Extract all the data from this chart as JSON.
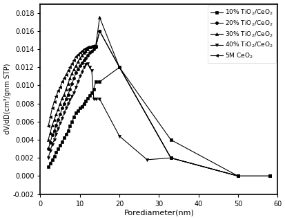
{
  "title": "",
  "xlabel": "Porediameter(nm)",
  "ylabel": "dV/dD(cm³/gnm STP)",
  "xlim": [
    0,
    60
  ],
  "ylim": [
    -0.002,
    0.019
  ],
  "yticks": [
    -0.002,
    0.0,
    0.002,
    0.004,
    0.006,
    0.008,
    0.01,
    0.012,
    0.014,
    0.016,
    0.018
  ],
  "xticks": [
    0,
    10,
    20,
    30,
    40,
    50,
    60
  ],
  "series": [
    {
      "label": "10% TiO$_2$/CeO$_2$",
      "marker": "s",
      "x": [
        2,
        2.5,
        3,
        3.5,
        4,
        4.5,
        5,
        5.5,
        6,
        6.5,
        7,
        7.5,
        8,
        8.5,
        9,
        9.5,
        10,
        10.5,
        11,
        11.5,
        12,
        12.5,
        13,
        13.5,
        14,
        15,
        20,
        33,
        50,
        58
      ],
      "y": [
        0.001,
        0.0014,
        0.0018,
        0.0022,
        0.0026,
        0.003,
        0.0034,
        0.0038,
        0.0042,
        0.0046,
        0.005,
        0.0055,
        0.006,
        0.0065,
        0.007,
        0.0072,
        0.0075,
        0.0077,
        0.008,
        0.0083,
        0.0086,
        0.0089,
        0.0092,
        0.0096,
        0.0104,
        0.0104,
        0.012,
        0.004,
        0.0,
        0.0
      ]
    },
    {
      "label": "20% TiO$_2$/CeO$_2$",
      "marker": "o",
      "x": [
        2,
        2.5,
        3,
        3.5,
        4,
        4.5,
        5,
        5.5,
        6,
        6.5,
        7,
        7.5,
        8,
        8.5,
        9,
        9.5,
        10,
        10.5,
        11,
        11.5,
        12,
        12.5,
        13,
        13.5,
        14,
        15,
        20,
        33,
        50,
        58
      ],
      "y": [
        0.003,
        0.0037,
        0.0045,
        0.005,
        0.0056,
        0.0062,
        0.0068,
        0.0075,
        0.008,
        0.0085,
        0.009,
        0.0096,
        0.0102,
        0.0108,
        0.0114,
        0.0118,
        0.0122,
        0.0125,
        0.0128,
        0.013,
        0.0133,
        0.0136,
        0.0138,
        0.014,
        0.0142,
        0.016,
        0.012,
        0.002,
        0.0,
        0.0
      ]
    },
    {
      "label": "30% TiO$_2$/CeO$_2$",
      "marker": "^",
      "x": [
        2,
        2.5,
        3,
        3.5,
        4,
        4.5,
        5,
        5.5,
        6,
        6.5,
        7,
        7.5,
        8,
        8.5,
        9,
        9.5,
        10,
        10.5,
        11,
        11.5,
        12,
        12.5,
        13,
        13.5,
        14,
        15,
        20,
        33,
        50,
        58
      ],
      "y": [
        0.004,
        0.0048,
        0.0056,
        0.0062,
        0.0068,
        0.0074,
        0.008,
        0.0086,
        0.009,
        0.0096,
        0.0102,
        0.0108,
        0.0113,
        0.0118,
        0.0122,
        0.0126,
        0.013,
        0.0133,
        0.0136,
        0.0138,
        0.014,
        0.0142,
        0.0143,
        0.0144,
        0.0144,
        0.0175,
        0.012,
        0.002,
        0.0,
        0.0
      ]
    },
    {
      "label": "40% TiO$_2$/CeO$_2$",
      "marker": "v",
      "x": [
        2,
        2.5,
        3,
        3.5,
        4,
        4.5,
        5,
        5.5,
        6,
        6.5,
        7,
        7.5,
        8,
        8.5,
        9,
        9.5,
        10,
        10.5,
        11,
        11.5,
        12,
        12.5,
        13,
        13.5,
        14,
        15,
        20,
        27,
        33,
        50
      ],
      "y": [
        0.002,
        0.0028,
        0.0035,
        0.004,
        0.0046,
        0.0052,
        0.0058,
        0.0064,
        0.007,
        0.0075,
        0.008,
        0.0084,
        0.0088,
        0.0092,
        0.0098,
        0.0104,
        0.011,
        0.0115,
        0.012,
        0.0123,
        0.0124,
        0.012,
        0.0116,
        0.0085,
        0.0085,
        0.0085,
        0.0044,
        0.0018,
        0.002,
        0.0
      ]
    },
    {
      "label": "5M CeO$_2$",
      "marker": "<",
      "x": [
        2,
        2.5,
        3,
        3.5,
        4,
        4.5,
        5,
        5.5,
        6,
        6.5,
        7,
        7.5,
        8,
        8.5,
        9,
        9.5,
        10,
        10.5,
        11,
        11.5,
        12,
        12.5,
        13,
        13.5,
        14,
        15,
        20,
        33,
        50,
        58
      ],
      "y": [
        0.0055,
        0.0065,
        0.0075,
        0.0082,
        0.0088,
        0.0094,
        0.0098,
        0.0104,
        0.0108,
        0.0112,
        0.0116,
        0.012,
        0.0124,
        0.0128,
        0.0132,
        0.0134,
        0.0136,
        0.0138,
        0.014,
        0.0141,
        0.0142,
        0.0142,
        0.0143,
        0.0143,
        0.0143,
        0.016,
        0.012,
        0.002,
        0.0,
        0.0
      ]
    }
  ],
  "background_color": "#ffffff",
  "markersize": 3,
  "linewidth": 0.8
}
